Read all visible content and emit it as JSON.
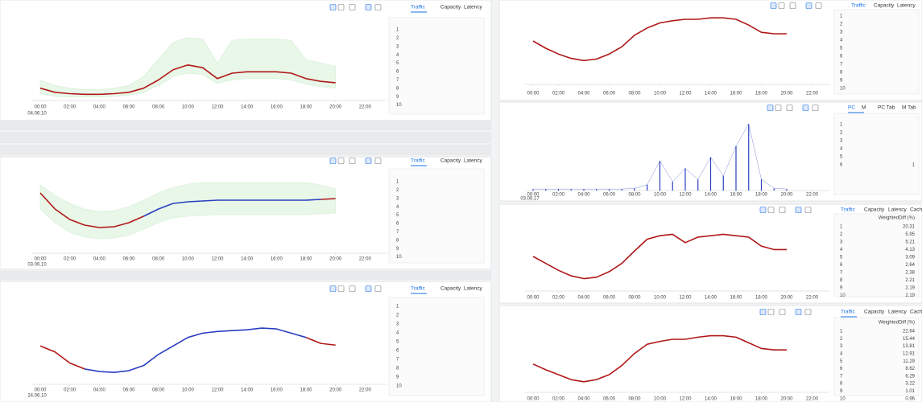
{
  "time_axis": {
    "xlim": [
      0,
      24
    ],
    "xticks": [
      {
        "value": 0,
        "label": "00:00"
      },
      {
        "value": 2,
        "label": "02:00"
      },
      {
        "value": 4,
        "label": "04:00"
      },
      {
        "value": 6,
        "label": "06:00"
      },
      {
        "value": 8,
        "label": "08:00"
      },
      {
        "value": 10,
        "label": "10:00"
      },
      {
        "value": 12,
        "label": "12:00"
      },
      {
        "value": 14,
        "label": "14:00"
      },
      {
        "value": 16,
        "label": "16:00"
      },
      {
        "value": 18,
        "label": "18:00"
      },
      {
        "value": 20,
        "label": "20:00"
      },
      {
        "value": 22,
        "label": "22:00"
      }
    ],
    "x": [
      0,
      1,
      2,
      3,
      4,
      5,
      6,
      7,
      8,
      9,
      10,
      11,
      12,
      13,
      14,
      15,
      16,
      17,
      18,
      19,
      20
    ]
  },
  "panels": [
    {
      "type": "line",
      "tabs": [
        "Traffic",
        "Capacity",
        "Latency"
      ],
      "date": "04.06.10",
      "ylim": [
        0,
        100
      ],
      "band": {
        "upper": [
          30,
          22,
          18,
          16,
          16,
          18,
          22,
          35,
          60,
          85,
          92,
          90,
          55,
          88,
          90,
          90,
          90,
          88,
          60,
          55,
          50
        ],
        "lower": [
          10,
          6,
          5,
          5,
          5,
          6,
          8,
          12,
          22,
          35,
          40,
          38,
          25,
          30,
          32,
          32,
          32,
          30,
          24,
          20,
          18
        ]
      },
      "series": [
        {
          "color": "#b01818",
          "values": [
            18,
            12,
            10,
            9,
            9,
            10,
            12,
            18,
            30,
            45,
            52,
            48,
            32,
            40,
            42,
            42,
            42,
            40,
            32,
            28,
            26
          ]
        }
      ],
      "entries": [
        {
          "rank": 1
        },
        {
          "rank": 2
        },
        {
          "rank": 3
        },
        {
          "rank": 4
        },
        {
          "rank": 5
        },
        {
          "rank": 6
        },
        {
          "rank": 7
        },
        {
          "rank": 8
        },
        {
          "rank": 9
        },
        {
          "rank": 10
        }
      ]
    },
    {
      "type": "line",
      "tabs": [
        "Traffic",
        "Capacity",
        "Latency"
      ],
      "date": "03.06.10",
      "ylim": [
        0,
        100
      ],
      "band": {
        "upper": [
          85,
          72,
          62,
          55,
          52,
          53,
          58,
          66,
          75,
          82,
          86,
          88,
          88,
          88,
          88,
          88,
          88,
          88,
          88,
          85,
          80
        ],
        "lower": [
          55,
          38,
          26,
          20,
          18,
          19,
          22,
          30,
          38,
          44,
          46,
          47,
          48,
          48,
          48,
          48,
          48,
          48,
          48,
          49,
          50
        ]
      },
      "series": [
        {
          "color": "#b01818",
          "values": [
            75,
            55,
            42,
            35,
            32,
            33,
            38,
            46,
            null,
            null,
            null,
            null,
            null,
            null,
            null,
            null,
            null,
            null,
            null,
            67,
            68
          ]
        },
        {
          "color": "#2a3fc0",
          "values": [
            null,
            null,
            null,
            null,
            null,
            null,
            null,
            46,
            55,
            62,
            64,
            65,
            66,
            66,
            66,
            66,
            66,
            66,
            66,
            67,
            null
          ]
        }
      ],
      "entries": [
        {
          "rank": 1
        },
        {
          "rank": 2
        },
        {
          "rank": 3
        },
        {
          "rank": 4
        },
        {
          "rank": 5
        },
        {
          "rank": 6
        },
        {
          "rank": 7
        },
        {
          "rank": 8
        },
        {
          "rank": 9
        },
        {
          "rank": 10
        }
      ]
    },
    {
      "type": "line",
      "tabs": [
        "Traffic",
        "Capacity",
        "Latency"
      ],
      "date": "24.06.10",
      "ylim": [
        0,
        100
      ],
      "series": [
        {
          "color": "#b01818",
          "values": [
            45,
            38,
            25,
            18,
            null,
            null,
            null,
            null,
            null,
            null,
            null,
            null,
            null,
            null,
            null,
            null,
            null,
            null,
            55,
            48,
            46
          ]
        },
        {
          "color": "#2a3fc0",
          "values": [
            null,
            null,
            null,
            18,
            15,
            14,
            16,
            22,
            35,
            45,
            55,
            60,
            62,
            63,
            64,
            66,
            65,
            60,
            55,
            null,
            null
          ]
        }
      ],
      "entries": [
        {
          "rank": 1
        },
        {
          "rank": 2
        },
        {
          "rank": 3
        },
        {
          "rank": 4
        },
        {
          "rank": 5
        },
        {
          "rank": 6
        },
        {
          "rank": 7
        },
        {
          "rank": 8
        },
        {
          "rank": 9
        },
        {
          "rank": 10
        }
      ]
    },
    {
      "type": "line",
      "tabs": [
        "Traffic",
        "Capacity",
        "Latency"
      ],
      "ylim": [
        0,
        100
      ],
      "series": [
        {
          "color": "#b01818",
          "values": [
            60,
            50,
            42,
            36,
            33,
            35,
            42,
            52,
            68,
            78,
            85,
            88,
            90,
            90,
            92,
            92,
            90,
            82,
            72,
            70,
            70
          ]
        }
      ],
      "entries": [
        {
          "rank": 1
        },
        {
          "rank": 2
        },
        {
          "rank": 3
        },
        {
          "rank": 4
        },
        {
          "rank": 5
        },
        {
          "rank": 6
        },
        {
          "rank": 7
        },
        {
          "rank": 8
        },
        {
          "rank": 9
        },
        {
          "rank": 10
        }
      ]
    },
    {
      "type": "spikes",
      "tabs": [
        "PC",
        "M",
        "PC Tab",
        "M Tab"
      ],
      "date": "03.06.17",
      "ylim": [
        0,
        100
      ],
      "series": [
        {
          "color": "#2a3fc0",
          "values": [
            2,
            2,
            2,
            2,
            2,
            2,
            2,
            2,
            3,
            8,
            40,
            12,
            30,
            15,
            45,
            20,
            60,
            90,
            15,
            3,
            2
          ]
        }
      ],
      "entries": [
        {
          "rank": 1
        },
        {
          "rank": 2
        },
        {
          "rank": 3
        },
        {
          "rank": 4
        },
        {
          "rank": 5
        },
        {
          "rank": 6,
          "value": 1
        }
      ]
    },
    {
      "type": "line",
      "tabs": [
        "Traffic",
        "Capacity",
        "Latency",
        "Cache"
      ],
      "header": "WeightedDiff (%)",
      "ylim": [
        0,
        100
      ],
      "series": [
        {
          "color": "#b01818",
          "values": [
            50,
            40,
            30,
            22,
            18,
            20,
            28,
            40,
            58,
            75,
            80,
            82,
            70,
            78,
            80,
            82,
            80,
            78,
            65,
            60,
            60
          ]
        }
      ],
      "entries": [
        {
          "rank": 1,
          "value": 20.31
        },
        {
          "rank": 2,
          "value": 5.95
        },
        {
          "rank": 3,
          "value": 5.21
        },
        {
          "rank": 4,
          "value": 4.13
        },
        {
          "rank": 5,
          "value": 3.09
        },
        {
          "rank": 6,
          "value": 2.64
        },
        {
          "rank": 7,
          "value": 2.38
        },
        {
          "rank": 8,
          "value": 2.21
        },
        {
          "rank": 9,
          "value": 2.19
        },
        {
          "rank": 10,
          "value": 2.19
        }
      ]
    },
    {
      "type": "line",
      "tabs": [
        "Traffic",
        "Capacity",
        "Latency",
        "Cache"
      ],
      "header": "WeightedDiff (%)",
      "ylim": [
        0,
        100
      ],
      "series": [
        {
          "color": "#b01818",
          "values": [
            40,
            32,
            25,
            18,
            15,
            18,
            25,
            38,
            55,
            68,
            72,
            75,
            75,
            78,
            80,
            80,
            78,
            70,
            62,
            60,
            60
          ]
        }
      ],
      "entries": [
        {
          "rank": 1,
          "value": 22.64
        },
        {
          "rank": 2,
          "value": 15.44
        },
        {
          "rank": 3,
          "value": 13.81
        },
        {
          "rank": 4,
          "value": 12.91
        },
        {
          "rank": 5,
          "value": 11.29
        },
        {
          "rank": 6,
          "value": 8.62
        },
        {
          "rank": 7,
          "value": 6.29
        },
        {
          "rank": 8,
          "value": 3.22
        },
        {
          "rank": 9,
          "value": 1.01
        },
        {
          "rank": 10,
          "value": 0.96
        }
      ]
    }
  ]
}
